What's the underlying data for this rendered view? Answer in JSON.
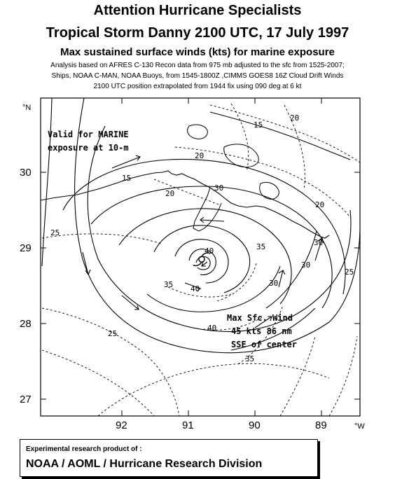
{
  "header": {
    "line1": "Attention Hurricane Specialists",
    "line2": "Tropical Storm Danny  2100 UTC, 17 July 1997",
    "line3": "Max sustained surface winds (kts) for marine exposure",
    "line4": "Analysis based on  AFRES C-130 Recon data from   975  mb adjusted to the sfc from  1525-2007;",
    "line5": "Ships, NOAA C-MAN, NOAA Buoys, from  1545-1800Z ,CIMMS GOES8 16Z Cloud Drift Winds",
    "line6": "2100 UTC position extrapolated from  1944 fix using 090 deg at 6 kt"
  },
  "map": {
    "lat_unit": "°N",
    "lon_unit": "°W",
    "lat_labels": [
      "30",
      "29",
      "28",
      "27"
    ],
    "lon_labels": [
      "92",
      "91",
      "90",
      "89"
    ],
    "validity_line1": "Valid for MARINE",
    "validity_line2": "exposure at 10-m",
    "max_wind_line1": "Max Sfc. Wind",
    "max_wind_line2": "45 kts 86 nm",
    "max_wind_line3": "SSE of center",
    "storm_center": {
      "lon": 90.8,
      "lat": 28.85
    },
    "contour_labels": {
      "c20a": "20",
      "c20b": "20",
      "c20c": "20",
      "c20d": "20",
      "c15a": "15",
      "c15b": "15",
      "c25a": "25",
      "c25b": "25",
      "c25c": "25",
      "c30a": "30",
      "c30b": "30",
      "c30c": "30",
      "c30d": "30",
      "c35a": "35",
      "c35b": "35",
      "c35c": "35",
      "c40a": "40",
      "c40b": "40",
      "c40c": "40"
    },
    "colors": {
      "lines": "#000000",
      "background": "#ffffff"
    }
  },
  "footer": {
    "line1": "Experimental research product of :",
    "line2": "NOAA / AOML / Hurricane Research Division"
  }
}
